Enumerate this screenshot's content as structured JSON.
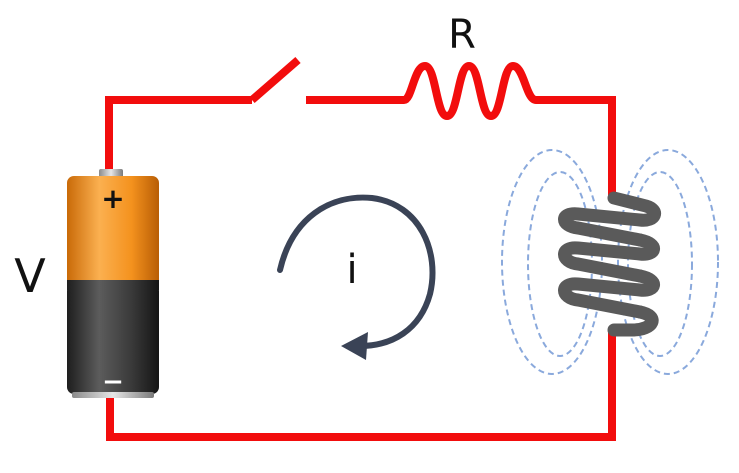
{
  "labels": {
    "voltage": "V",
    "resistor": "R",
    "current": "i",
    "battery_positive": "+",
    "battery_negative": "−"
  },
  "colors": {
    "wire": "#f20d0d",
    "battery_top": "#f4921e",
    "battery_bottom": "#3d3d3d",
    "coil": "#5a5a5a",
    "field_lines": "#8aa9dc",
    "arrow": "#3a4356"
  },
  "components": {
    "battery": "battery",
    "switch": "open-switch",
    "resistor": "resistor",
    "inductor": "inductor-coil"
  }
}
